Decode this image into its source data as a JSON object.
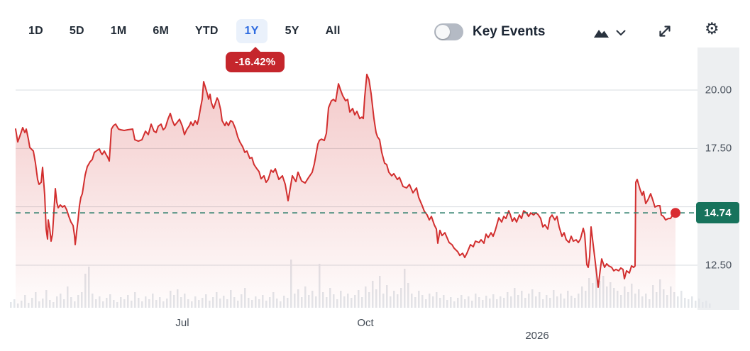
{
  "toolbar": {
    "ranges": [
      {
        "label": "1D",
        "active": false
      },
      {
        "label": "5D",
        "active": false
      },
      {
        "label": "1M",
        "active": false
      },
      {
        "label": "6M",
        "active": false
      },
      {
        "label": "YTD",
        "active": false
      },
      {
        "label": "1Y",
        "active": true
      },
      {
        "label": "5Y",
        "active": false
      },
      {
        "label": "All",
        "active": false
      }
    ],
    "change_badge": "-16.42%",
    "key_events_label": "Key Events",
    "key_events_on": false,
    "gear_glyph": "⚙",
    "icons": [
      "area-chart-type",
      "chevron-down",
      "expand",
      "settings-gear"
    ]
  },
  "colors": {
    "line_red": "#d22f2f",
    "badge_red": "#c5262c",
    "dot_red": "#d92b31",
    "dashed_teal": "#2c7d6a",
    "price_badge_green": "#17735c",
    "active_tab_blue": "#2e6be0",
    "active_tab_bg": "#eaf1fb",
    "grid_gray": "#d9dde1",
    "volume_gray": "#e3e6ea",
    "strip_bg": "#edeff1"
  },
  "chart_data": {
    "type": "area",
    "title": "1Y stock price chart with volume",
    "legend": [],
    "grid": true,
    "ylim": [
      11.0,
      21.0
    ],
    "y_gridline_values": [
      20.0,
      17.5,
      15.0,
      12.5
    ],
    "y_tick_labels": [
      "20.00",
      "17.50",
      "12.50"
    ],
    "x_tick_labels": [
      "Jul",
      "Oct",
      "2026"
    ],
    "current_price": "14.74",
    "current_price_value": 14.74,
    "change_pct": "-16.42%",
    "price_points": [
      [
        22,
        18.33
      ],
      [
        25,
        17.78
      ],
      [
        28,
        18.03
      ],
      [
        32,
        18.39
      ],
      [
        35,
        18.18
      ],
      [
        37,
        18.33
      ],
      [
        40,
        17.9
      ],
      [
        42,
        17.54
      ],
      [
        47,
        17.39
      ],
      [
        50,
        16.87
      ],
      [
        53,
        16.17
      ],
      [
        55,
        15.96
      ],
      [
        58,
        16.05
      ],
      [
        60,
        16.69
      ],
      [
        63,
        15.5
      ],
      [
        65,
        14.05
      ],
      [
        67,
        13.62
      ],
      [
        68,
        14.44
      ],
      [
        70,
        14.08
      ],
      [
        72,
        13.53
      ],
      [
        74,
        13.83
      ],
      [
        78,
        15.78
      ],
      [
        80,
        15.2
      ],
      [
        82,
        14.96
      ],
      [
        85,
        15.08
      ],
      [
        88,
        14.99
      ],
      [
        91,
        15.05
      ],
      [
        94,
        14.87
      ],
      [
        97,
        14.59
      ],
      [
        100,
        14.35
      ],
      [
        103,
        14.2
      ],
      [
        105,
        13.77
      ],
      [
        106,
        13.38
      ],
      [
        108,
        13.93
      ],
      [
        110,
        14.44
      ],
      [
        112,
        15.05
      ],
      [
        114,
        15.41
      ],
      [
        116,
        15.56
      ],
      [
        118,
        15.96
      ],
      [
        120,
        16.36
      ],
      [
        123,
        16.72
      ],
      [
        127,
        16.93
      ],
      [
        130,
        17.02
      ],
      [
        133,
        17.33
      ],
      [
        137,
        17.42
      ],
      [
        140,
        17.48
      ],
      [
        142,
        17.33
      ],
      [
        144,
        17.24
      ],
      [
        147,
        17.39
      ],
      [
        149,
        17.27
      ],
      [
        152,
        17.11
      ],
      [
        154,
        16.96
      ],
      [
        157,
        18.33
      ],
      [
        160,
        18.48
      ],
      [
        163,
        18.54
      ],
      [
        167,
        18.33
      ],
      [
        170,
        18.3
      ],
      [
        175,
        18.27
      ],
      [
        180,
        18.3
      ],
      [
        187,
        18.33
      ],
      [
        190,
        17.87
      ],
      [
        195,
        17.81
      ],
      [
        200,
        17.87
      ],
      [
        205,
        18.24
      ],
      [
        209,
        18.09
      ],
      [
        213,
        18.54
      ],
      [
        217,
        18.24
      ],
      [
        220,
        18.18
      ],
      [
        223,
        18.45
      ],
      [
        227,
        18.54
      ],
      [
        230,
        18.3
      ],
      [
        233,
        18.39
      ],
      [
        237,
        18.78
      ],
      [
        240,
        19.0
      ],
      [
        243,
        18.69
      ],
      [
        246,
        18.48
      ],
      [
        250,
        18.63
      ],
      [
        253,
        18.75
      ],
      [
        257,
        18.45
      ],
      [
        260,
        18.09
      ],
      [
        263,
        18.3
      ],
      [
        267,
        18.48
      ],
      [
        269,
        18.63
      ],
      [
        272,
        18.48
      ],
      [
        275,
        18.69
      ],
      [
        278,
        18.54
      ],
      [
        280,
        18.78
      ],
      [
        283,
        19.3
      ],
      [
        285,
        19.61
      ],
      [
        287,
        20.36
      ],
      [
        290,
        20.06
      ],
      [
        292,
        19.85
      ],
      [
        294,
        19.61
      ],
      [
        296,
        19.82
      ],
      [
        298,
        19.45
      ],
      [
        301,
        19.21
      ],
      [
        303,
        19.39
      ],
      [
        306,
        19.66
      ],
      [
        308,
        19.54
      ],
      [
        311,
        19.15
      ],
      [
        313,
        18.69
      ],
      [
        317,
        18.48
      ],
      [
        319,
        18.63
      ],
      [
        322,
        18.48
      ],
      [
        325,
        18.69
      ],
      [
        328,
        18.63
      ],
      [
        332,
        18.33
      ],
      [
        335,
        18.0
      ],
      [
        338,
        17.78
      ],
      [
        342,
        17.57
      ],
      [
        345,
        17.33
      ],
      [
        348,
        17.39
      ],
      [
        352,
        17.08
      ],
      [
        355,
        17.11
      ],
      [
        358,
        16.81
      ],
      [
        362,
        16.63
      ],
      [
        365,
        16.51
      ],
      [
        368,
        16.2
      ],
      [
        372,
        16.33
      ],
      [
        375,
        16.05
      ],
      [
        378,
        16.17
      ],
      [
        382,
        16.57
      ],
      [
        385,
        16.48
      ],
      [
        388,
        16.63
      ],
      [
        393,
        16.17
      ],
      [
        398,
        16.33
      ],
      [
        402,
        15.96
      ],
      [
        406,
        15.26
      ],
      [
        412,
        16.33
      ],
      [
        417,
        16.08
      ],
      [
        420,
        16.48
      ],
      [
        425,
        16.11
      ],
      [
        430,
        16.02
      ],
      [
        435,
        16.26
      ],
      [
        440,
        16.48
      ],
      [
        443,
        16.84
      ],
      [
        448,
        17.69
      ],
      [
        450,
        17.84
      ],
      [
        453,
        17.9
      ],
      [
        457,
        17.84
      ],
      [
        460,
        18.15
      ],
      [
        463,
        19.24
      ],
      [
        467,
        19.54
      ],
      [
        470,
        19.6
      ],
      [
        473,
        19.51
      ],
      [
        477,
        20.27
      ],
      [
        480,
        20.0
      ],
      [
        483,
        19.76
      ],
      [
        487,
        19.54
      ],
      [
        490,
        19.6
      ],
      [
        493,
        19.06
      ],
      [
        497,
        19.21
      ],
      [
        500,
        18.94
      ],
      [
        503,
        19.09
      ],
      [
        507,
        18.78
      ],
      [
        510,
        18.84
      ],
      [
        512,
        18.78
      ],
      [
        514,
        19.7
      ],
      [
        517,
        20.67
      ],
      [
        520,
        20.45
      ],
      [
        523,
        19.85
      ],
      [
        527,
        18.78
      ],
      [
        530,
        18.18
      ],
      [
        532,
        18.0
      ],
      [
        535,
        17.87
      ],
      [
        538,
        17.33
      ],
      [
        542,
        16.87
      ],
      [
        545,
        16.81
      ],
      [
        548,
        16.48
      ],
      [
        552,
        16.33
      ],
      [
        555,
        16.42
      ],
      [
        560,
        16.17
      ],
      [
        563,
        16.26
      ],
      [
        568,
        15.87
      ],
      [
        573,
        15.81
      ],
      [
        577,
        15.96
      ],
      [
        582,
        15.6
      ],
      [
        587,
        15.81
      ],
      [
        590,
        15.41
      ],
      [
        595,
        15.05
      ],
      [
        598,
        14.81
      ],
      [
        602,
        14.65
      ],
      [
        605,
        14.44
      ],
      [
        608,
        14.59
      ],
      [
        612,
        14.23
      ],
      [
        615,
        14.05
      ],
      [
        617,
        13.44
      ],
      [
        620,
        13.99
      ],
      [
        623,
        13.77
      ],
      [
        627,
        13.89
      ],
      [
        630,
        13.68
      ],
      [
        633,
        13.47
      ],
      [
        637,
        13.38
      ],
      [
        640,
        13.23
      ],
      [
        645,
        13.08
      ],
      [
        648,
        12.92
      ],
      [
        652,
        13.01
      ],
      [
        655,
        12.83
      ],
      [
        658,
        13.01
      ],
      [
        663,
        13.38
      ],
      [
        667,
        13.29
      ],
      [
        670,
        13.53
      ],
      [
        675,
        13.47
      ],
      [
        678,
        13.59
      ],
      [
        682,
        13.44
      ],
      [
        685,
        13.83
      ],
      [
        688,
        13.68
      ],
      [
        692,
        13.89
      ],
      [
        695,
        13.74
      ],
      [
        698,
        13.99
      ],
      [
        703,
        14.53
      ],
      [
        707,
        14.35
      ],
      [
        710,
        14.59
      ],
      [
        713,
        14.5
      ],
      [
        717,
        14.83
      ],
      [
        719,
        14.68
      ],
      [
        722,
        14.38
      ],
      [
        725,
        14.53
      ],
      [
        728,
        14.35
      ],
      [
        732,
        14.65
      ],
      [
        735,
        14.5
      ],
      [
        738,
        14.83
      ],
      [
        742,
        14.74
      ],
      [
        745,
        14.59
      ],
      [
        748,
        14.74
      ],
      [
        752,
        14.65
      ],
      [
        755,
        14.74
      ],
      [
        758,
        14.68
      ],
      [
        762,
        14.5
      ],
      [
        765,
        14.14
      ],
      [
        768,
        14.23
      ],
      [
        772,
        14.05
      ],
      [
        775,
        14.53
      ],
      [
        778,
        14.65
      ],
      [
        782,
        14.44
      ],
      [
        785,
        14.59
      ],
      [
        788,
        14.14
      ],
      [
        792,
        13.74
      ],
      [
        795,
        13.89
      ],
      [
        798,
        13.59
      ],
      [
        802,
        13.47
      ],
      [
        805,
        13.74
      ],
      [
        808,
        13.53
      ],
      [
        812,
        13.59
      ],
      [
        815,
        13.47
      ],
      [
        818,
        13.62
      ],
      [
        822,
        14.08
      ],
      [
        824,
        13.83
      ],
      [
        827,
        12.53
      ],
      [
        829,
        12.41
      ],
      [
        831,
        12.86
      ],
      [
        833,
        14.14
      ],
      [
        836,
        13.38
      ],
      [
        839,
        12.62
      ],
      [
        843,
        11.56
      ],
      [
        846,
        12.32
      ],
      [
        848,
        12.77
      ],
      [
        852,
        12.41
      ],
      [
        855,
        12.56
      ],
      [
        858,
        12.47
      ],
      [
        862,
        12.41
      ],
      [
        865,
        12.26
      ],
      [
        868,
        12.32
      ],
      [
        872,
        12.26
      ],
      [
        875,
        12.38
      ],
      [
        878,
        12.32
      ],
      [
        880,
        11.92
      ],
      [
        883,
        12.26
      ],
      [
        887,
        12.17
      ],
      [
        890,
        12.47
      ],
      [
        893,
        12.41
      ],
      [
        895,
        12.47
      ],
      [
        896,
        16.05
      ],
      [
        898,
        16.17
      ],
      [
        902,
        15.75
      ],
      [
        905,
        15.5
      ],
      [
        907,
        15.66
      ],
      [
        910,
        15.14
      ],
      [
        913,
        15.29
      ],
      [
        917,
        15.56
      ],
      [
        920,
        15.29
      ],
      [
        923,
        14.99
      ],
      [
        927,
        15.05
      ],
      [
        930,
        15.05
      ],
      [
        932,
        14.65
      ],
      [
        935,
        14.59
      ],
      [
        938,
        14.44
      ],
      [
        942,
        14.5
      ],
      [
        945,
        14.5
      ],
      [
        948,
        14.65
      ],
      [
        952,
        14.74
      ]
    ],
    "volume_bars": [
      8,
      12,
      6,
      10,
      18,
      7,
      14,
      22,
      9,
      13,
      25,
      11,
      8,
      16,
      20,
      12,
      30,
      15,
      9,
      18,
      22,
      48,
      58,
      20,
      12,
      16,
      9,
      14,
      19,
      11,
      8,
      15,
      12,
      18,
      10,
      22,
      14,
      9,
      16,
      12,
      20,
      11,
      15,
      9,
      13,
      24,
      18,
      26,
      15,
      20,
      12,
      9,
      16,
      11,
      14,
      19,
      10,
      15,
      22,
      13,
      17,
      12,
      25,
      15,
      10,
      19,
      28,
      14,
      11,
      16,
      12,
      18,
      10,
      15,
      22,
      13,
      9,
      17,
      14,
      68,
      20,
      26,
      15,
      30,
      18,
      24,
      16,
      62,
      22,
      15,
      28,
      19,
      12,
      24,
      16,
      20,
      14,
      18,
      25,
      15,
      30,
      22,
      38,
      26,
      45,
      20,
      32,
      16,
      24,
      19,
      28,
      55,
      35,
      20,
      15,
      24,
      18,
      12,
      20,
      16,
      22,
      14,
      18,
      11,
      15,
      9,
      14,
      18,
      12,
      16,
      10,
      20,
      15,
      11,
      17,
      13,
      19,
      12,
      16,
      14,
      22,
      16,
      28,
      18,
      24,
      14,
      20,
      26,
      16,
      22,
      12,
      18,
      14,
      25,
      16,
      20,
      13,
      24,
      17,
      14,
      20,
      30,
      24,
      42,
      35,
      55,
      38,
      45,
      30,
      36,
      28,
      24,
      18,
      30,
      22,
      34,
      20,
      26,
      16,
      20,
      12,
      32,
      22,
      40,
      26,
      18,
      30,
      22,
      16,
      24,
      14,
      12,
      16,
      10,
      13,
      8,
      10,
      6
    ]
  }
}
